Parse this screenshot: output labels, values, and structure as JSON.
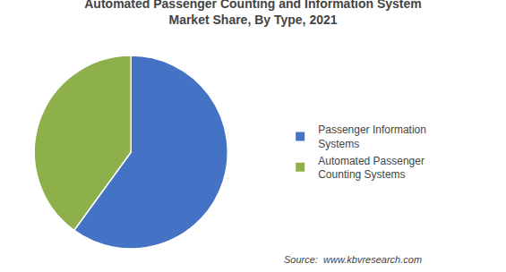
{
  "chart_data": {
    "type": "pie",
    "title": "Automated Passenger Counting and Information System",
    "subtitle": "Market Share, By Type, 2021",
    "categories": [
      "Passenger Information\nSystems",
      "Automated Passenger\nCounting Systems"
    ],
    "values": [
      60,
      40
    ],
    "colors": [
      "#4472C4",
      "#8DB04A"
    ],
    "legend": "right",
    "annotations": [
      "Source:  www.kbvresearch.com"
    ]
  }
}
